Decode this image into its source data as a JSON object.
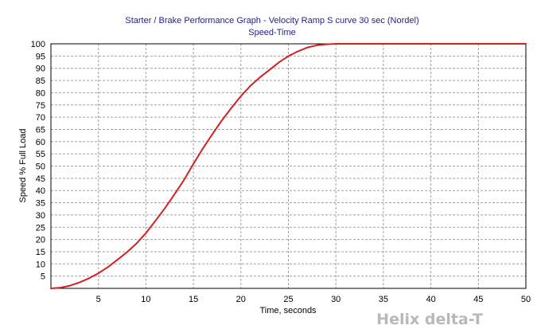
{
  "chart_data": {
    "type": "line",
    "title": "Starter / Brake Performance Graph - Velocity Ramp S curve 30 sec (Nordel)",
    "subtitle": "Speed-Time",
    "xlabel": "Time, seconds",
    "ylabel": "Speed % Full Load",
    "xlim": [
      0,
      50
    ],
    "ylim": [
      0,
      100
    ],
    "xticks": [
      5,
      10,
      15,
      20,
      25,
      30,
      35,
      40,
      45,
      50
    ],
    "yticks": [
      5,
      10,
      15,
      20,
      25,
      30,
      35,
      40,
      45,
      50,
      55,
      60,
      65,
      70,
      75,
      80,
      85,
      90,
      95,
      100
    ],
    "grid": true,
    "legend": "none",
    "series": [
      {
        "color": "#d42020",
        "x": [
          0,
          1,
          2,
          3,
          4,
          5,
          6,
          7,
          8,
          9,
          10,
          11,
          12,
          13,
          14,
          15,
          16,
          17,
          18,
          19,
          20,
          21,
          22,
          23,
          24,
          25,
          26,
          27,
          28,
          29,
          30,
          35,
          40,
          45,
          50
        ],
        "y": [
          0,
          0.3,
          1.1,
          2.4,
          4.1,
          6.2,
          8.7,
          11.7,
          14.8,
          18.3,
          22.6,
          27.6,
          32.8,
          38.4,
          44.3,
          50.9,
          57.2,
          63.1,
          68.7,
          73.8,
          78.6,
          82.8,
          86.3,
          89.3,
          92.4,
          95.0,
          96.9,
          98.5,
          99.4,
          99.8,
          100,
          100,
          100,
          100,
          100
        ]
      }
    ]
  },
  "watermark": "Helix delta-T"
}
